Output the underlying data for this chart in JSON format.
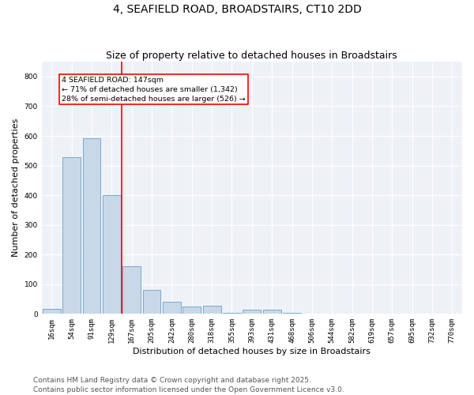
{
  "title_line1": "4, SEAFIELD ROAD, BROADSTAIRS, CT10 2DD",
  "title_line2": "Size of property relative to detached houses in Broadstairs",
  "xlabel": "Distribution of detached houses by size in Broadstairs",
  "ylabel": "Number of detached properties",
  "categories": [
    "16sqm",
    "54sqm",
    "91sqm",
    "129sqm",
    "167sqm",
    "205sqm",
    "242sqm",
    "280sqm",
    "318sqm",
    "355sqm",
    "393sqm",
    "431sqm",
    "468sqm",
    "506sqm",
    "544sqm",
    "582sqm",
    "619sqm",
    "657sqm",
    "695sqm",
    "732sqm",
    "770sqm"
  ],
  "values": [
    18,
    528,
    592,
    400,
    162,
    82,
    42,
    25,
    28,
    4,
    14,
    14,
    4,
    0,
    0,
    0,
    0,
    0,
    0,
    0,
    0
  ],
  "bar_color": "#c8d8e8",
  "bar_edge_color": "#6a9ec5",
  "vline_x": 3.5,
  "vline_color": "red",
  "annotation_text": "4 SEAFIELD ROAD: 147sqm\n← 71% of detached houses are smaller (1,342)\n28% of semi-detached houses are larger (526) →",
  "annotation_box_color": "white",
  "annotation_box_edge_color": "red",
  "ylim": [
    0,
    850
  ],
  "yticks": [
    0,
    100,
    200,
    300,
    400,
    500,
    600,
    700,
    800
  ],
  "footnote_line1": "Contains HM Land Registry data © Crown copyright and database right 2025.",
  "footnote_line2": "Contains public sector information licensed under the Open Government Licence v3.0.",
  "bg_color": "#eef2f7",
  "title_fontsize": 10,
  "subtitle_fontsize": 9,
  "tick_fontsize": 6.5,
  "label_fontsize": 8,
  "footnote_fontsize": 6.5
}
